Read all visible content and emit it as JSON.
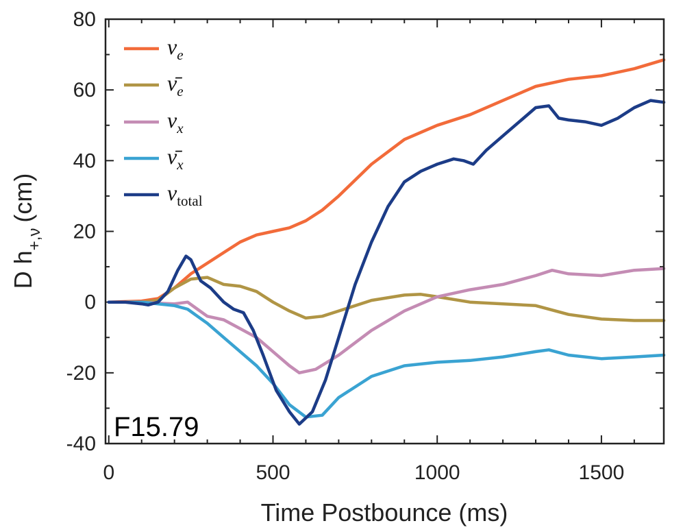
{
  "chart_data": {
    "type": "line",
    "xlabel": "Time Postbounce (ms)",
    "ylabel_main": "D h",
    "ylabel_sub": "+,ν",
    "ylabel_unit": "(cm)",
    "xlim": [
      -10,
      1690
    ],
    "ylim": [
      -40,
      80
    ],
    "xticks": [
      0,
      500,
      1000,
      1500
    ],
    "yticks": [
      -40,
      -20,
      0,
      20,
      40,
      60,
      80
    ],
    "xtick_labels": [
      "0",
      "500",
      "1000",
      "1500"
    ],
    "ytick_labels": [
      "-40",
      "-20",
      "0",
      "20",
      "40",
      "60",
      "80"
    ],
    "annotation": "F15.79",
    "legend_position": "top-left",
    "series": [
      {
        "name": "nu_e",
        "legend_main": "ν",
        "legend_sub": "e",
        "color": "#f26b3a",
        "x": [
          0,
          100,
          150,
          200,
          250,
          300,
          350,
          400,
          450,
          500,
          550,
          600,
          650,
          700,
          800,
          900,
          1000,
          1100,
          1200,
          1300,
          1400,
          1500,
          1600,
          1690
        ],
        "y": [
          0,
          0.3,
          1,
          4,
          8,
          11,
          14,
          17,
          19,
          20,
          21,
          23,
          26,
          30,
          39,
          46,
          50,
          53,
          57,
          61,
          63,
          64,
          66,
          68.5
        ]
      },
      {
        "name": "nubar_e",
        "legend_main": "ν̄",
        "legend_sub": "e",
        "color": "#b09545",
        "x": [
          0,
          100,
          150,
          200,
          250,
          300,
          350,
          400,
          450,
          500,
          550,
          600,
          650,
          700,
          800,
          900,
          950,
          1000,
          1100,
          1200,
          1300,
          1400,
          1500,
          1600,
          1690
        ],
        "y": [
          0,
          0,
          0.5,
          4,
          6.5,
          7,
          5,
          4.5,
          3,
          0,
          -2.5,
          -4.5,
          -4,
          -2.5,
          0.5,
          2,
          2.2,
          1.5,
          0,
          -0.5,
          -1,
          -3.5,
          -4.8,
          -5.2,
          -5.2
        ]
      },
      {
        "name": "nu_x",
        "legend_main": "ν",
        "legend_sub": "x",
        "color": "#c48cb4",
        "x": [
          0,
          100,
          150,
          200,
          240,
          270,
          300,
          350,
          400,
          450,
          500,
          550,
          580,
          630,
          700,
          800,
          900,
          1000,
          1100,
          1200,
          1300,
          1350,
          1400,
          1500,
          1600,
          1690
        ],
        "y": [
          0,
          0,
          -0.3,
          -0.5,
          0,
          -2,
          -4,
          -5,
          -7.5,
          -10,
          -14,
          -18,
          -20,
          -19,
          -15,
          -8,
          -2.5,
          1.5,
          3.5,
          5,
          7.5,
          9,
          8,
          7.5,
          9,
          9.5
        ]
      },
      {
        "name": "nubar_x",
        "legend_main": "ν̄",
        "legend_sub": "x",
        "color": "#3aa3d2",
        "x": [
          0,
          100,
          150,
          200,
          240,
          270,
          300,
          350,
          400,
          450,
          500,
          550,
          600,
          650,
          700,
          800,
          900,
          1000,
          1100,
          1200,
          1300,
          1340,
          1400,
          1500,
          1600,
          1690
        ],
        "y": [
          0,
          0,
          -0.5,
          -1,
          -2,
          -4,
          -6,
          -10,
          -14,
          -18,
          -23,
          -29,
          -32.5,
          -32,
          -27,
          -21,
          -18,
          -17,
          -16.5,
          -15.5,
          -14,
          -13.5,
          -15,
          -16,
          -15.5,
          -15
        ]
      },
      {
        "name": "nu_total",
        "legend_main": "ν",
        "legend_sub": "total",
        "color": "#1c3c87",
        "x": [
          0,
          50,
          100,
          120,
          150,
          180,
          210,
          235,
          250,
          280,
          310,
          350,
          380,
          410,
          440,
          470,
          510,
          550,
          580,
          620,
          660,
          700,
          750,
          800,
          850,
          900,
          950,
          1000,
          1050,
          1080,
          1110,
          1150,
          1200,
          1250,
          1300,
          1340,
          1370,
          1400,
          1450,
          1500,
          1550,
          1600,
          1650,
          1690
        ],
        "y": [
          0,
          0,
          -0.5,
          -0.8,
          0,
          3,
          9,
          13,
          12,
          6,
          4,
          0,
          -2,
          -3,
          -8,
          -15,
          -25,
          -31,
          -34.5,
          -31,
          -22,
          -10,
          5,
          17,
          27,
          34,
          37,
          39,
          40.5,
          40,
          39,
          43,
          47,
          51,
          55,
          55.5,
          52,
          51.5,
          51,
          50,
          52,
          55,
          57,
          56.5
        ]
      }
    ]
  }
}
